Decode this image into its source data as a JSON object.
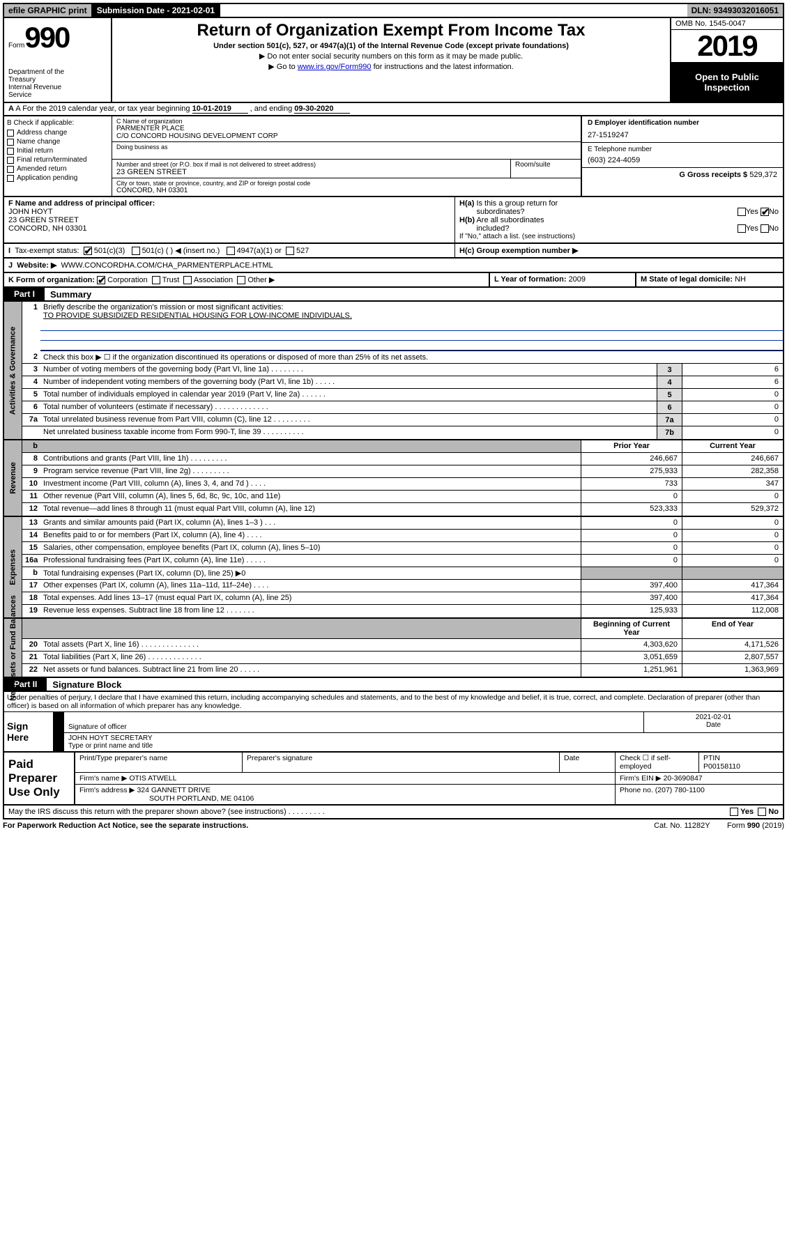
{
  "colors": {
    "header_gray": "#b8b8b8",
    "black": "#000000",
    "link": "#0000cc",
    "rule_blue": "#0033aa",
    "cell_shade": "#dcdcdc"
  },
  "top": {
    "b1": "efile GRAPHIC print",
    "b2": "Submission Date - 2021-02-01",
    "b3": "DLN: 93493032016051"
  },
  "header": {
    "form_word": "Form",
    "form_num": "990",
    "dept": "Department of the Treasury\nInternal Revenue Service",
    "title": "Return of Organization Exempt From Income Tax",
    "sub": "Under section 501(c), 527, or 4947(a)(1) of the Internal Revenue Code (except private foundations)",
    "note1": "▶ Do not enter social security numbers on this form as it may be made public.",
    "note2_pre": "▶ Go to ",
    "note2_link": "www.irs.gov/Form990",
    "note2_post": " for instructions and the latest information.",
    "omb": "OMB No. 1545-0047",
    "year": "2019",
    "otp1": "Open to Public",
    "otp2": "Inspection"
  },
  "rowA": {
    "pre": "A For the 2019 calendar year, or tax year beginning ",
    "begin": "10-01-2019",
    "mid": " , and ending ",
    "end": "09-30-2020"
  },
  "entity": {
    "checkB_label": "B Check if applicable:",
    "checks": [
      "Address change",
      "Name change",
      "Initial return",
      "Final return/terminated",
      "Amended return",
      "Application pending"
    ],
    "c_label": "C Name of organization",
    "c_name": "PARMENTER PLACE",
    "c_co": "C/O CONCORD HOUSING DEVELOPMENT CORP",
    "dba_label": "Doing business as",
    "addr_label": "Number and street (or P.O. box if mail is not delivered to street address)",
    "addr": "23 GREEN STREET",
    "suite_label": "Room/suite",
    "city_label": "City or town, state or province, country, and ZIP or foreign postal code",
    "city": "CONCORD, NH  03301",
    "d_label": "D Employer identification number",
    "d_val": "27-1519247",
    "e_label": "E Telephone number",
    "e_val": "(603) 224-4059",
    "g_label": "G Gross receipts $ ",
    "g_val": "529,372"
  },
  "rowF": {
    "f_label": "F Name and address of principal officer:",
    "f_name": "JOHN HOYT",
    "f_addr1": "23 GREEN STREET",
    "f_addr2": "CONCORD, NH  03301",
    "ha": "H(a)  Is this a group return for subordinates?",
    "ha_yes": "Yes",
    "ha_no": "No",
    "hb": "H(b)  Are all subordinates included?",
    "hb_note": "If \"No,\" attach a list. (see instructions)",
    "hc": "H(c)  Group exemption number ▶"
  },
  "taxstatus": {
    "label": "Tax-exempt status:",
    "a": "501(c)(3)",
    "b": "501(c) (  ) ◀ (insert no.)",
    "c": "4947(a)(1) or",
    "d": "527"
  },
  "website": {
    "label": "Website: ▶",
    "val": "WWW.CONCORDHA.COM/CHA_PARMENTERPLACE.HTML"
  },
  "rowK": {
    "k": "K Form of organization:",
    "opts": [
      "Corporation",
      "Trust",
      "Association",
      "Other ▶"
    ],
    "l": "L Year of formation: ",
    "l_val": "2009",
    "m": "M State of legal domicile: ",
    "m_val": "NH"
  },
  "part1": {
    "tab": "Part I",
    "title": "Summary"
  },
  "summary": {
    "q1": "Briefly describe the organization's mission or most significant activities:",
    "mission": "TO PROVIDE SUBSIDIZED RESIDENTIAL HOUSING FOR LOW-INCOME INDIVIDUALS.",
    "q2": "Check this box ▶ ☐  if the organization discontinued its operations or disposed of more than 25% of its net assets.",
    "rows_single": [
      {
        "n": "3",
        "t": "Number of voting members of the governing body (Part VI, line 1a)   .    .    .    .    .    .    .    .",
        "box": "3",
        "v": "6"
      },
      {
        "n": "4",
        "t": "Number of independent voting members of the governing body (Part VI, line 1b)   .    .    .    .    .",
        "box": "4",
        "v": "6"
      },
      {
        "n": "5",
        "t": "Total number of individuals employed in calendar year 2019 (Part V, line 2a)   .    .    .    .    .    .",
        "box": "5",
        "v": "0"
      },
      {
        "n": "6",
        "t": "Total number of volunteers (estimate if necessary)   .    .    .    .    .    .    .    .    .    .    .    .    .",
        "box": "6",
        "v": "0"
      },
      {
        "n": "7a",
        "t": "Total unrelated business revenue from Part VIII, column (C), line 12   .    .    .    .    .    .    .    .    .",
        "box": "7a",
        "v": "0"
      },
      {
        "n": "",
        "t": "Net unrelated business taxable income from Form 990-T, line 39   .    .    .    .    .    .    .    .    .    .",
        "box": "7b",
        "v": "0"
      }
    ],
    "hdr_prior": "Prior Year",
    "hdr_curr": "Current Year",
    "revenue": [
      {
        "n": "8",
        "t": "Contributions and grants (Part VIII, line 1h)   .    .    .    .    .    .    .    .    .",
        "p": "246,667",
        "c": "246,667"
      },
      {
        "n": "9",
        "t": "Program service revenue (Part VIII, line 2g)   .    .    .    .    .    .    .    .    .",
        "p": "275,933",
        "c": "282,358"
      },
      {
        "n": "10",
        "t": "Investment income (Part VIII, column (A), lines 3, 4, and 7d )   .    .    .    .",
        "p": "733",
        "c": "347"
      },
      {
        "n": "11",
        "t": "Other revenue (Part VIII, column (A), lines 5, 6d, 8c, 9c, 10c, and 11e)",
        "p": "0",
        "c": "0"
      },
      {
        "n": "12",
        "t": "Total revenue—add lines 8 through 11 (must equal Part VIII, column (A), line 12)",
        "p": "523,333",
        "c": "529,372"
      }
    ],
    "expenses": [
      {
        "n": "13",
        "t": "Grants and similar amounts paid (Part IX, column (A), lines 1–3 )   .    .    .",
        "p": "0",
        "c": "0"
      },
      {
        "n": "14",
        "t": "Benefits paid to or for members (Part IX, column (A), line 4)   .    .    .    .",
        "p": "0",
        "c": "0"
      },
      {
        "n": "15",
        "t": "Salaries, other compensation, employee benefits (Part IX, column (A), lines 5–10)",
        "p": "0",
        "c": "0"
      },
      {
        "n": "16a",
        "t": "Professional fundraising fees (Part IX, column (A), line 11e)   .    .    .    .    .",
        "p": "0",
        "c": "0"
      },
      {
        "n": "b",
        "t": "Total fundraising expenses (Part IX, column (D), line 25) ▶0",
        "shade": true
      },
      {
        "n": "17",
        "t": "Other expenses (Part IX, column (A), lines 11a–11d, 11f–24e)   .    .    .    .",
        "p": "397,400",
        "c": "417,364"
      },
      {
        "n": "18",
        "t": "Total expenses. Add lines 13–17 (must equal Part IX, column (A), line 25)",
        "p": "397,400",
        "c": "417,364"
      },
      {
        "n": "19",
        "t": "Revenue less expenses. Subtract line 18 from line 12   .    .    .    .    .    .    .",
        "p": "125,933",
        "c": "112,008"
      }
    ],
    "hdr_begin": "Beginning of Current Year",
    "hdr_end": "End of Year",
    "netassets": [
      {
        "n": "20",
        "t": "Total assets (Part X, line 16)   .    .    .    .    .    .    .    .    .    .    .    .    .    .",
        "p": "4,303,620",
        "c": "4,171,526"
      },
      {
        "n": "21",
        "t": "Total liabilities (Part X, line 26)   .    .    .    .    .    .    .    .    .    .    .    .    .",
        "p": "3,051,659",
        "c": "2,807,557"
      },
      {
        "n": "22",
        "t": "Net assets or fund balances. Subtract line 21 from line 20   .    .    .    .    .",
        "p": "1,251,961",
        "c": "1,363,969"
      }
    ],
    "vtabs": [
      "Activities & Governance",
      "Revenue",
      "Expenses",
      "Net Assets or Fund Balances"
    ]
  },
  "part2": {
    "tab": "Part II",
    "title": "Signature Block"
  },
  "sig": {
    "penalty": "Under penalties of perjury, I declare that I have examined this return, including accompanying schedules and statements, and to the best of my knowledge and belief, it is true, correct, and complete. Declaration of preparer (other than officer) is based on all information of which preparer has any knowledge.",
    "sign_here": "Sign Here",
    "sig_officer": "Signature of officer",
    "date_lbl": "Date",
    "date_val": "2021-02-01",
    "name": "JOHN HOYT SECRETARY",
    "name_lbl": "Type or print name and title"
  },
  "prep": {
    "lab": "Paid Preparer Use Only",
    "h1": "Print/Type preparer's name",
    "h2": "Preparer's signature",
    "h3": "Date",
    "h4a": "Check ☐ if self-employed",
    "h4b": "PTIN",
    "ptin": "P00158110",
    "firm_lbl": "Firm's name    ▶ ",
    "firm": "OTIS ATWELL",
    "ein_lbl": "Firm's EIN ▶ ",
    "ein": "20-3690847",
    "addr_lbl": "Firm's address ▶ ",
    "addr1": "324 GANNETT DRIVE",
    "addr2": "SOUTH PORTLAND, ME  04106",
    "phone_lbl": "Phone no. ",
    "phone": "(207) 780-1100"
  },
  "footer": {
    "discuss": "May the IRS discuss this return with the preparer shown above? (see instructions)   .    .    .    .    .    .    .    .    .",
    "yes": "Yes",
    "no": "No",
    "pra": "For Paperwork Reduction Act Notice, see the separate instructions.",
    "cat": "Cat. No. 11282Y",
    "form": "Form 990 (2019)"
  }
}
